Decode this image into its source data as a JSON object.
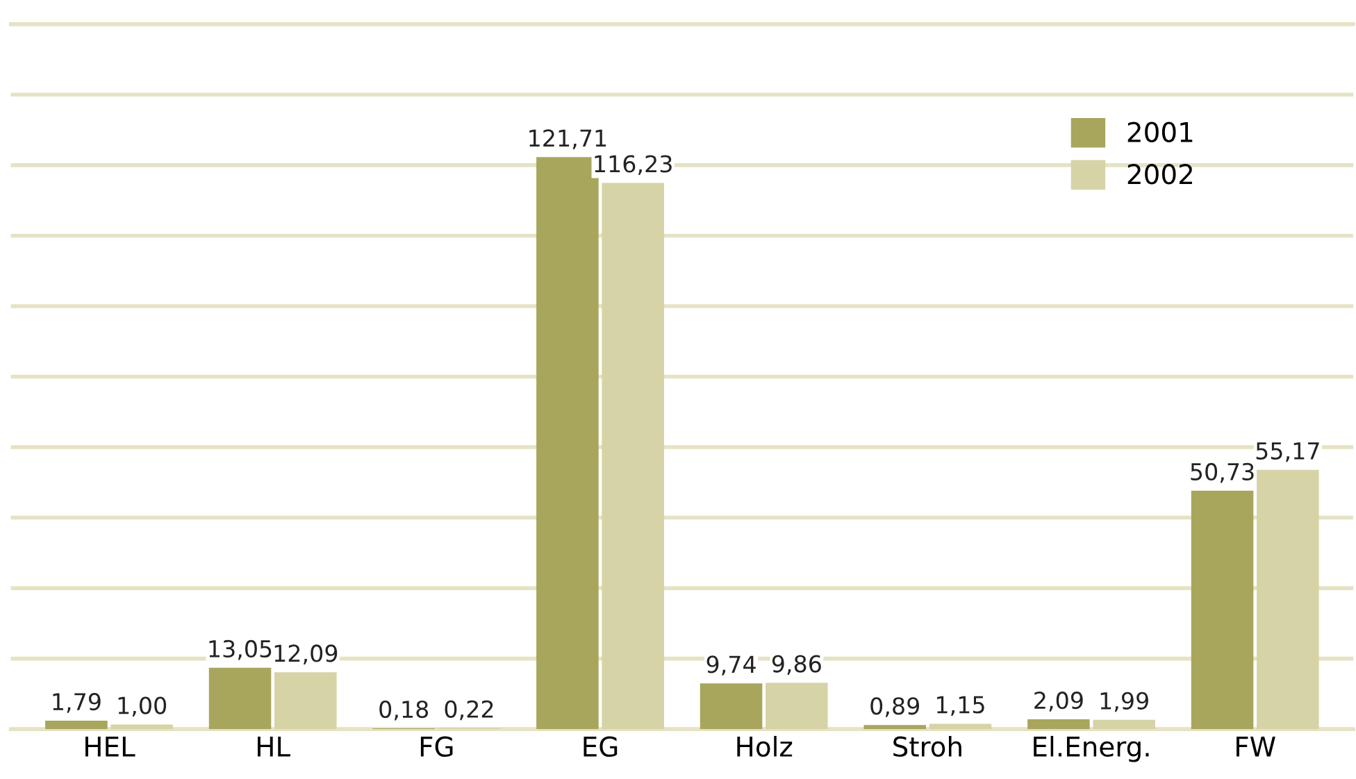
{
  "chart_data": {
    "type": "bar",
    "categories": [
      "HEL",
      "HL",
      "FG",
      "EG",
      "Holz",
      "Stroh",
      "El.Energ.",
      "FW"
    ],
    "series": [
      {
        "name": "2001",
        "color": "#a8a65c",
        "values": [
          1.79,
          13.05,
          0.18,
          121.71,
          9.74,
          0.89,
          2.09,
          50.73
        ],
        "value_labels": [
          "1,79",
          "13,05",
          "0,18",
          "121,71",
          "9,74",
          "0,89",
          "2,09",
          "50,73"
        ]
      },
      {
        "name": "2002",
        "color": "#d6d3a6",
        "values": [
          1.0,
          12.09,
          0.22,
          116.23,
          9.86,
          1.15,
          1.99,
          55.17
        ],
        "value_labels": [
          "1,00",
          "12,09",
          "0,22",
          "116,23",
          "9,86",
          "1,15",
          "1,99",
          "55,17"
        ]
      }
    ],
    "ylim": [
      0,
      150
    ],
    "yticks": [
      {
        "value": 0,
        "label": null
      },
      {
        "value": 15,
        "label": null
      },
      {
        "value": 30,
        "label": null
      },
      {
        "value": 45,
        "label": null
      },
      {
        "value": 60,
        "label": null
      },
      {
        "value": 75,
        "label": null
      },
      {
        "value": 90,
        "label": null
      },
      {
        "value": 105,
        "label": null
      },
      {
        "value": 120,
        "label": null
      },
      {
        "value": 135,
        "label": null
      },
      {
        "value": 150,
        "label": null
      }
    ],
    "tick_labels": "x",
    "grid": "y",
    "legend": "top right"
  }
}
